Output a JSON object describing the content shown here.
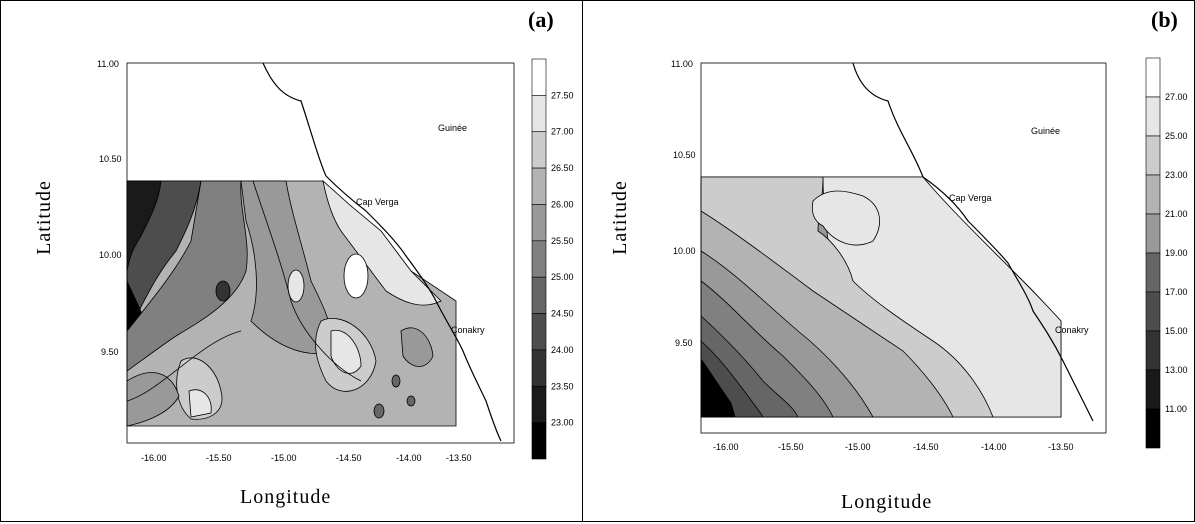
{
  "panels": [
    {
      "letter": "(a)",
      "xlabel": "Longitude",
      "ylabel": "Latitude",
      "xticks": [
        "-16.00",
        "-15.50",
        "-15.00",
        "-14.50",
        "-14.00",
        "-13.50"
      ],
      "yticks": [
        "11.00",
        "10.50",
        "10.00",
        "9.50"
      ],
      "places": {
        "guinee": "Guinée",
        "cap_verga": "Cap Verga",
        "conakry": "Conakry"
      },
      "colorbar_labels": [
        "27.50",
        "27.00",
        "26.50",
        "26.00",
        "25.50",
        "25.00",
        "24.50",
        "24.00",
        "23.50",
        "23.00"
      ]
    },
    {
      "letter": "(b)",
      "xlabel": "Longitude",
      "ylabel": "Latitude",
      "xticks": [
        "-16.00",
        "-15.50",
        "-15.00",
        "-14.50",
        "-14.00",
        "-13.50"
      ],
      "yticks": [
        "11.00",
        "10.50",
        "10.00",
        "9.50"
      ],
      "places": {
        "guinee": "Guinée",
        "cap_verga": "Cap Verga",
        "conakry": "Conakry"
      },
      "colorbar_labels": [
        "27.00",
        "25.00",
        "23.00",
        "21.00",
        "19.00",
        "17.00",
        "15.00",
        "13.00",
        "11.00"
      ]
    }
  ],
  "colors": {
    "land": "#ffffff",
    "ramp": [
      "#ffffff",
      "#e6e6e6",
      "#cccccc",
      "#b3b3b3",
      "#999999",
      "#808080",
      "#666666",
      "#4d4d4d",
      "#333333",
      "#1a1a1a",
      "#000000"
    ]
  }
}
